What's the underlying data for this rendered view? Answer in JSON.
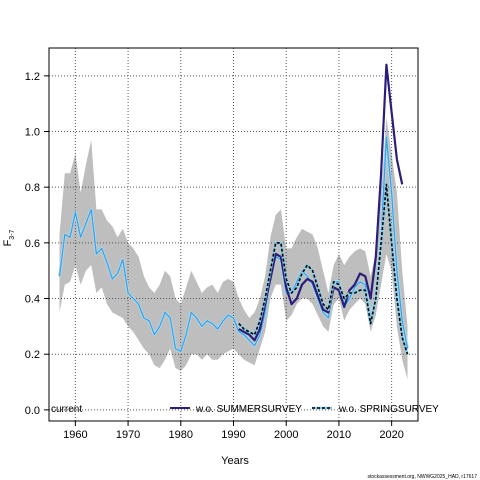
{
  "chart_data": {
    "type": "line",
    "xlabel": "Years",
    "ylabel_main": "F",
    "ylabel_sub": "3-7",
    "xlim": [
      1955,
      2025
    ],
    "ylim": [
      -0.04,
      1.3
    ],
    "grid": true,
    "xticks": [
      1960,
      1970,
      1980,
      1990,
      2000,
      2010,
      2020
    ],
    "yticks": [
      0.0,
      0.2,
      0.4,
      0.6,
      0.8,
      1.0,
      1.2
    ],
    "legend": {
      "placement": "bottom",
      "items": [
        {
          "label": "current",
          "style": "none"
        },
        {
          "label": "w.o. SUMMERSURVEY",
          "style": "solid"
        },
        {
          "label": "w.o. SPRINGSURVEY",
          "style": "dashed"
        }
      ]
    },
    "colors": {
      "ci_band": "#bebebe",
      "current": "#87ceeb",
      "current_light": "#add8e6",
      "summer": "#2b1d7a",
      "spring": "#000000",
      "grid": "#555555"
    },
    "x": [
      1957,
      1958,
      1959,
      1960,
      1961,
      1962,
      1963,
      1964,
      1965,
      1966,
      1967,
      1968,
      1969,
      1970,
      1971,
      1972,
      1973,
      1974,
      1975,
      1976,
      1977,
      1978,
      1979,
      1980,
      1981,
      1982,
      1983,
      1984,
      1985,
      1986,
      1987,
      1988,
      1989,
      1990,
      1991,
      1992,
      1993,
      1994,
      1995,
      1996,
      1997,
      1998,
      1999,
      2000,
      2001,
      2002,
      2003,
      2004,
      2005,
      2006,
      2007,
      2008,
      2009,
      2010,
      2011,
      2012,
      2013,
      2014,
      2015,
      2016,
      2017,
      2018,
      2019,
      2020,
      2021,
      2022,
      2023
    ],
    "ci_upper": [
      0.63,
      0.85,
      0.85,
      0.92,
      0.78,
      0.88,
      0.97,
      0.72,
      0.72,
      0.68,
      0.66,
      0.62,
      0.65,
      0.6,
      0.58,
      0.55,
      0.48,
      0.44,
      0.42,
      0.45,
      0.5,
      0.48,
      0.4,
      0.38,
      0.44,
      0.5,
      0.46,
      0.42,
      0.44,
      0.45,
      0.42,
      0.46,
      0.47,
      0.46,
      0.4,
      0.36,
      0.33,
      0.35,
      0.4,
      0.48,
      0.62,
      0.7,
      0.72,
      0.58,
      0.58,
      0.62,
      0.65,
      0.64,
      0.63,
      0.58,
      0.5,
      0.42,
      0.52,
      0.56,
      0.52,
      0.55,
      0.57,
      0.58,
      0.57,
      0.48,
      0.56,
      0.78,
      1.05,
      0.92,
      0.78,
      0.5,
      0.3
    ],
    "ci_lower": [
      0.35,
      0.45,
      0.46,
      0.52,
      0.45,
      0.5,
      0.52,
      0.42,
      0.44,
      0.38,
      0.35,
      0.34,
      0.33,
      0.3,
      0.28,
      0.25,
      0.22,
      0.2,
      0.16,
      0.15,
      0.18,
      0.22,
      0.15,
      0.14,
      0.16,
      0.2,
      0.2,
      0.18,
      0.2,
      0.18,
      0.18,
      0.2,
      0.21,
      0.22,
      0.2,
      0.18,
      0.17,
      0.16,
      0.22,
      0.28,
      0.4,
      0.45,
      0.45,
      0.32,
      0.34,
      0.38,
      0.4,
      0.4,
      0.38,
      0.34,
      0.3,
      0.28,
      0.38,
      0.4,
      0.32,
      0.36,
      0.38,
      0.4,
      0.38,
      0.28,
      0.34,
      0.45,
      0.56,
      0.5,
      0.3,
      0.18,
      0.11
    ],
    "series": [
      {
        "name": "current",
        "values": [
          0.48,
          0.63,
          0.62,
          0.71,
          0.62,
          0.67,
          0.72,
          0.56,
          0.58,
          0.53,
          0.47,
          0.49,
          0.54,
          0.42,
          0.4,
          0.38,
          0.33,
          0.32,
          0.27,
          0.3,
          0.35,
          0.33,
          0.22,
          0.21,
          0.27,
          0.35,
          0.33,
          0.3,
          0.32,
          0.31,
          0.29,
          0.32,
          0.34,
          0.33,
          0.28,
          0.27,
          0.25,
          0.23,
          0.27,
          0.35,
          0.48,
          0.55,
          0.54,
          0.42,
          0.42,
          0.46,
          0.5,
          0.48,
          0.45,
          0.4,
          0.35,
          0.33,
          0.46,
          0.46,
          0.37,
          0.4,
          0.44,
          0.46,
          0.45,
          0.33,
          0.4,
          0.62,
          0.98,
          0.78,
          0.5,
          0.32,
          0.22
        ]
      },
      {
        "name": "w.o. SUMMERSURVEY",
        "values": [
          null,
          null,
          null,
          null,
          null,
          null,
          null,
          null,
          null,
          null,
          null,
          null,
          null,
          null,
          null,
          null,
          null,
          null,
          null,
          null,
          null,
          null,
          null,
          null,
          null,
          null,
          null,
          null,
          null,
          null,
          null,
          null,
          null,
          null,
          0.29,
          0.28,
          0.27,
          0.25,
          0.29,
          0.38,
          0.47,
          0.56,
          0.55,
          0.44,
          0.38,
          0.4,
          0.45,
          0.47,
          0.46,
          0.41,
          0.36,
          0.35,
          0.44,
          0.43,
          0.37,
          0.43,
          0.45,
          0.49,
          0.48,
          0.4,
          0.55,
          0.85,
          1.24,
          1.07,
          0.9,
          0.81,
          null
        ]
      },
      {
        "name": "w.o. SPRINGSURVEY",
        "values": [
          null,
          null,
          null,
          null,
          null,
          null,
          null,
          null,
          null,
          null,
          null,
          null,
          null,
          null,
          null,
          null,
          null,
          null,
          null,
          null,
          null,
          null,
          null,
          null,
          null,
          null,
          null,
          null,
          null,
          null,
          null,
          null,
          null,
          null,
          0.31,
          0.29,
          0.28,
          0.27,
          0.32,
          0.4,
          0.5,
          0.6,
          0.6,
          0.47,
          0.42,
          0.44,
          0.49,
          0.52,
          0.5,
          0.44,
          0.38,
          0.36,
          0.46,
          0.45,
          0.4,
          0.42,
          0.42,
          0.43,
          0.43,
          0.31,
          0.4,
          0.6,
          0.81,
          0.6,
          0.4,
          0.26,
          0.2
        ]
      }
    ]
  },
  "credit": "stockassessment.org, NWWG2025_HAD, r17617"
}
